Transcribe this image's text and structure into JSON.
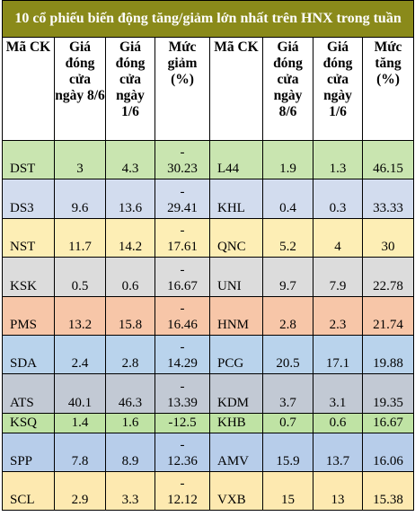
{
  "title": "10 cổ phiếu biến động tăng/giảm lớn nhất trên HNX trong tuần",
  "headers": {
    "code": "Mã CK",
    "close_86": "Giá đóng cửa ngày 8/6",
    "close_16": "Giá đóng cửa ngày 1/6",
    "decline": "Mức giảm (%)",
    "code2": "Mã CK",
    "close_86b": "Giá đóng cửa ngày 8/6",
    "close_16b": "Giá đóng cửa ngày 1/6",
    "increase": "Mức tăng (%)"
  },
  "rows": [
    {
      "l_code": "DST",
      "l_p1": "3",
      "l_p2": "4.3",
      "l_dash": "-",
      "l_pct": "30.23",
      "r_code": "L44",
      "r_p1": "1.9",
      "r_p2": "1.3",
      "r_pct": "46.15",
      "bg": "#c9e5b0"
    },
    {
      "l_code": "DS3",
      "l_p1": "9.6",
      "l_p2": "13.6",
      "l_dash": "-",
      "l_pct": "29.41",
      "r_code": "KHL",
      "r_p1": "0.4",
      "r_p2": "0.3",
      "r_pct": "33.33",
      "bg": "#d2dcee"
    },
    {
      "l_code": "NST",
      "l_p1": "11.7",
      "l_p2": "14.2",
      "l_dash": "-",
      "l_pct": "17.61",
      "r_code": "QNC",
      "r_p1": "5.2",
      "r_p2": "4",
      "r_pct": "30",
      "bg": "#fdeeb5"
    },
    {
      "l_code": "KSK",
      "l_p1": "0.5",
      "l_p2": "0.6",
      "l_dash": "-",
      "l_pct": "16.67",
      "r_code": "UNI",
      "r_p1": "9.7",
      "r_p2": "7.9",
      "r_pct": "22.78",
      "bg": "#dcdcdc"
    },
    {
      "l_code": "PMS",
      "l_p1": "13.2",
      "l_p2": "15.8",
      "l_dash": "-",
      "l_pct": "16.46",
      "r_code": "HNM",
      "r_p1": "2.8",
      "r_p2": "2.3",
      "r_pct": "21.74",
      "bg": "#f7c6a8"
    },
    {
      "l_code": "SDA",
      "l_p1": "2.4",
      "l_p2": "2.8",
      "l_dash": "-",
      "l_pct": "14.29",
      "r_code": "PCG",
      "r_p1": "20.5",
      "r_p2": "17.1",
      "r_pct": "19.88",
      "bg": "#b9d3ec"
    },
    {
      "l_code": "ATS",
      "l_p1": "40.1",
      "l_p2": "46.3",
      "l_dash": "-",
      "l_pct": "13.39",
      "r_code": "KDM",
      "r_p1": "3.7",
      "r_p2": "3.1",
      "r_pct": "19.35",
      "bg": "#c2c9d4"
    },
    {
      "l_code": "KSQ",
      "l_p1": "1.4",
      "l_p2": "1.6",
      "l_dash": "",
      "l_pct": "-12.5",
      "r_code": "KHB",
      "r_p1": "0.7",
      "r_p2": "0.6",
      "r_pct": "16.67",
      "bg": "#bfe3a4"
    },
    {
      "l_code": "SPP",
      "l_p1": "7.8",
      "l_p2": "8.9",
      "l_dash": "-",
      "l_pct": "12.36",
      "r_code": "AMV",
      "r_p1": "15.9",
      "r_p2": "13.7",
      "r_pct": "16.06",
      "bg": "#b7cdea"
    },
    {
      "l_code": "SCL",
      "l_p1": "2.9",
      "l_p2": "3.3",
      "l_dash": "-",
      "l_pct": "12.12",
      "r_code": "VXB",
      "r_p1": "15",
      "r_p2": "13",
      "r_pct": "15.38",
      "bg": "#fde9b0"
    }
  ]
}
